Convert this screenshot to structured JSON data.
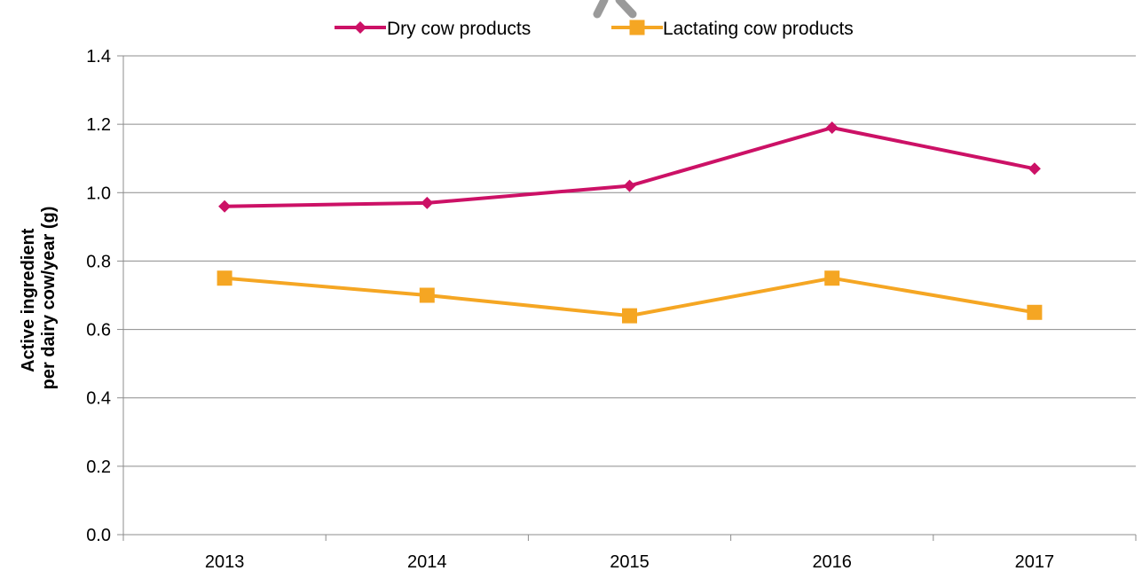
{
  "chart_data": {
    "type": "line",
    "title": "",
    "xlabel": "",
    "ylabel": [
      "Active ingredient",
      "per dairy cow/year (g)"
    ],
    "x": [
      "2013",
      "2014",
      "2015",
      "2016",
      "2017"
    ],
    "ylim": [
      0,
      1.4
    ],
    "yticks": [
      "0.0",
      "0.2",
      "0.4",
      "0.6",
      "0.8",
      "1.0",
      "1.2",
      "1.4"
    ],
    "grid": true,
    "legend_position": "top",
    "series": [
      {
        "name": "Dry cow products",
        "values": [
          0.96,
          0.97,
          1.02,
          1.19,
          1.07
        ],
        "color": "#cc1166",
        "marker": "diamond"
      },
      {
        "name": "Lactating cow products",
        "values": [
          0.75,
          0.7,
          0.64,
          0.75,
          0.65
        ],
        "color": "#f5a623",
        "marker": "square"
      }
    ]
  }
}
